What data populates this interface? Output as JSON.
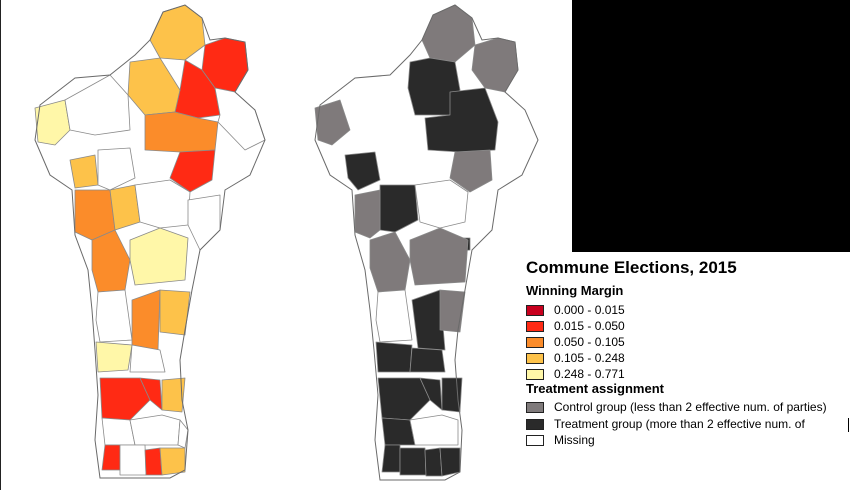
{
  "legend": {
    "title": "Commune Elections, 2015",
    "margin_heading": "Winning Margin",
    "margin_bins": [
      {
        "label": "0.000 - 0.015",
        "color": "#c8001e"
      },
      {
        "label": "0.015 - 0.050",
        "color": "#ff2a14"
      },
      {
        "label": "0.050 - 0.105",
        "color": "#fb8c2a"
      },
      {
        "label": "0.105 - 0.248",
        "color": "#fdc24a"
      },
      {
        "label": "0.248 - 0.771",
        "color": "#fff7a8"
      }
    ],
    "treatment_heading": "Treatment assignment",
    "treatment_groups": [
      {
        "label": "Control group (less than 2 effective num. of parties)",
        "color": "#7f7a7b"
      },
      {
        "label": "Treatment group (more than 2 effective num. of",
        "color": "#2a2a2a"
      },
      {
        "label": "Missing",
        "color": "#ffffff"
      }
    ]
  },
  "maps": [
    {
      "name": "winning-margin-map",
      "legend": "margin_bins"
    },
    {
      "name": "treatment-assignment-map",
      "legend": "treatment_groups"
    }
  ],
  "colors": {
    "background": "#ffffff",
    "panel": "#000000",
    "border": "#8a8a8a"
  }
}
